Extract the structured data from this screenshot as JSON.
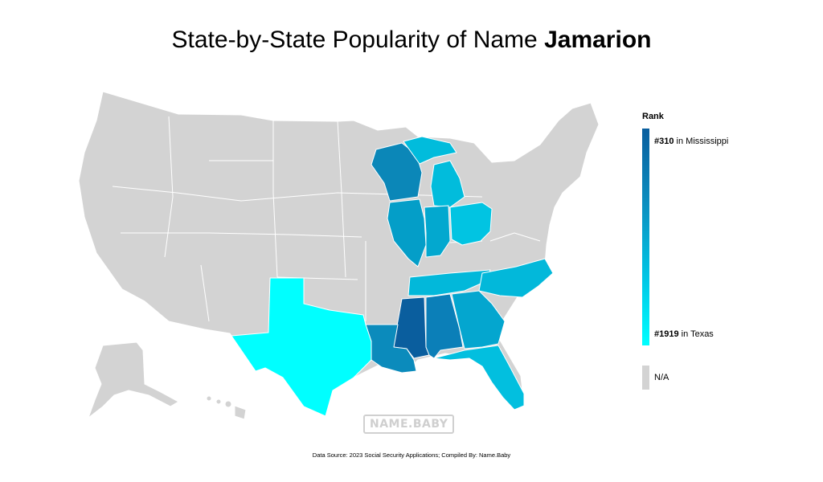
{
  "title": {
    "prefix": "State-by-State Popularity of Name",
    "name": "Jamarion"
  },
  "legend": {
    "title": "Rank",
    "top_rank": "#310",
    "top_state": "in Mississippi",
    "bottom_rank": "#1919",
    "bottom_state": "in Texas",
    "na_label": "N/A"
  },
  "watermark": "NAME.BABY",
  "source": "Data Source: 2023 Social Security Applications; Compiled By: Name.Baby",
  "colors": {
    "no_data": "#d3d3d3",
    "rank_best": "#0a5e9e",
    "rank_worst": "#00ffff"
  },
  "chart_data": {
    "type": "choropleth",
    "metric": "rank",
    "states": [
      {
        "state": "Mississippi",
        "rank": 310,
        "color": "#0a5e9e"
      },
      {
        "state": "Alabama",
        "rank": null,
        "color": "#0b7fb8"
      },
      {
        "state": "Louisiana",
        "rank": null,
        "color": "#0b8bbc"
      },
      {
        "state": "Wisconsin",
        "rank": null,
        "color": "#0b87b8"
      },
      {
        "state": "Illinois",
        "rank": null,
        "color": "#049ec8"
      },
      {
        "state": "Indiana",
        "rank": null,
        "color": "#03a8cf"
      },
      {
        "state": "Georgia",
        "rank": null,
        "color": "#04a6cf"
      },
      {
        "state": "Michigan",
        "rank": null,
        "color": "#01bcdc"
      },
      {
        "state": "Ohio",
        "rank": null,
        "color": "#01c4e2"
      },
      {
        "state": "Tennessee",
        "rank": null,
        "color": "#02b8da"
      },
      {
        "state": "North Carolina",
        "rank": null,
        "color": "#02b8da"
      },
      {
        "state": "Florida",
        "rank": null,
        "color": "#02bfdf"
      },
      {
        "state": "Texas",
        "rank": 1919,
        "color": "#00ffff"
      }
    ]
  }
}
